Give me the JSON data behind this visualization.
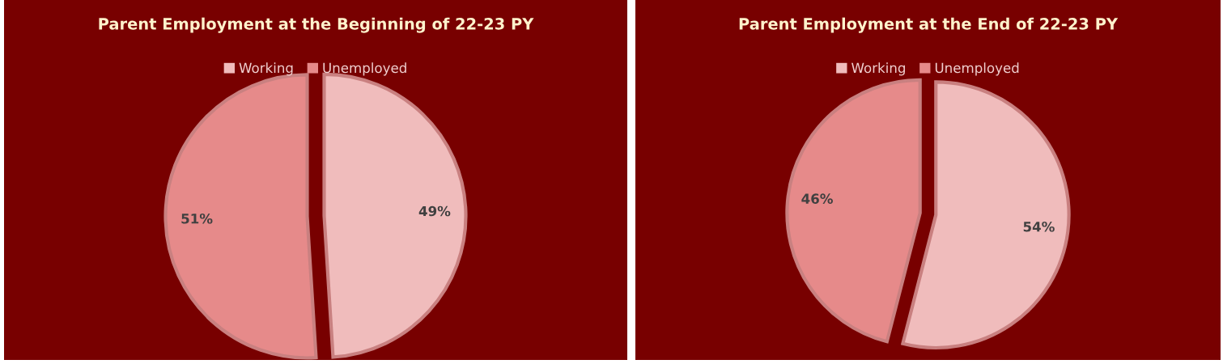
{
  "chart_data": [
    {
      "type": "pie",
      "title": "Parent Employment at the Beginning of 22-23 PY",
      "categories": [
        "Working",
        "Unemployed"
      ],
      "values": [
        49,
        51
      ],
      "colors": [
        "#f0bcbc",
        "#e68a8a"
      ],
      "value_labels": [
        "49%",
        "51%"
      ],
      "legend": "top"
    },
    {
      "type": "pie",
      "title": "Parent Employment at the End of 22-23 PY",
      "categories": [
        "Working",
        "Unemployed"
      ],
      "values": [
        54,
        46
      ],
      "colors": [
        "#f0bcbc",
        "#e68a8a"
      ],
      "value_labels": [
        "54%",
        "46%"
      ],
      "legend": "top"
    }
  ]
}
